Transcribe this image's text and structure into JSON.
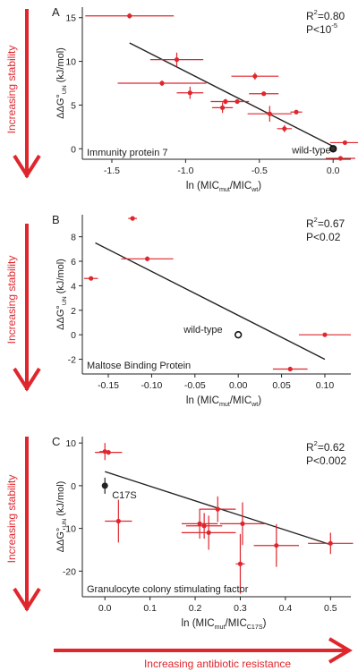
{
  "figure": {
    "stability_arrow_label": "Increasing stability",
    "resistance_arrow_label": "Increasing antibiotic resistance",
    "accent_color": "#e0262d"
  },
  "chart_data": [
    {
      "type": "scatter",
      "panel_letter": "A",
      "title": "Immunity protein 7",
      "xlabel": "ln (MIC_mut/MIC_wt)",
      "ylabel": "ΔΔG°_UN (kJ/mol)",
      "xlim": [
        -1.7,
        0.12
      ],
      "ylim": [
        -1.2,
        16.2
      ],
      "xticks": [
        -1.5,
        -1.0,
        -0.5,
        0.0
      ],
      "xtick_labels": [
        "-1.5",
        "-1.0",
        "-0.5",
        "0.0"
      ],
      "yticks": [
        0,
        5,
        10,
        15
      ],
      "ytick_labels": [
        "0",
        "5",
        "10",
        "15"
      ],
      "stats": {
        "r2_label": "R",
        "r2_value": "=0.80",
        "p_label": "P<10",
        "p_exponent": "-5"
      },
      "reference_point": {
        "label": "wild-type",
        "x": 0.0,
        "y": 0.0
      },
      "fit_line": {
        "x": [
          -1.38,
          0.02
        ],
        "y": [
          12.1,
          0.1
        ]
      },
      "points": [
        {
          "x": -1.38,
          "y": 15.2,
          "xerr": 0.3,
          "yerr": 0.3
        },
        {
          "x": -1.06,
          "y": 10.2,
          "xerr": 0.18,
          "yerr": 0.8
        },
        {
          "x": -1.16,
          "y": 7.5,
          "xerr": 0.3,
          "yerr": 0.3
        },
        {
          "x": -0.97,
          "y": 6.4,
          "xerr": 0.09,
          "yerr": 0.7
        },
        {
          "x": -0.75,
          "y": 4.7,
          "xerr": 0.07,
          "yerr": 0.6
        },
        {
          "x": -0.73,
          "y": 5.4,
          "xerr": 0.1,
          "yerr": 0.3
        },
        {
          "x": -0.65,
          "y": 5.4,
          "xerr": 0.08,
          "yerr": 0.2
        },
        {
          "x": -0.53,
          "y": 8.3,
          "xerr": 0.16,
          "yerr": 0.4
        },
        {
          "x": -0.47,
          "y": 6.3,
          "xerr": 0.1,
          "yerr": 0.2
        },
        {
          "x": -0.43,
          "y": 4.0,
          "xerr": 0.15,
          "yerr": 0.9
        },
        {
          "x": -0.33,
          "y": 2.3,
          "xerr": 0.05,
          "yerr": 0.4
        },
        {
          "x": -0.25,
          "y": 4.2,
          "xerr": 0.04,
          "yerr": 0.2
        },
        {
          "x": 0.08,
          "y": 0.7,
          "xerr": 0.1,
          "yerr": 0.2
        },
        {
          "x": 0.05,
          "y": -1.1,
          "xerr": 0.1,
          "yerr": 0.2
        }
      ]
    },
    {
      "type": "scatter",
      "panel_letter": "B",
      "title": "Maltose Binding Protein",
      "xlabel": "ln (MIC_mut/MIC_wt)",
      "ylabel": "ΔΔG°_UN (kJ/mol)",
      "xlim": [
        -0.18,
        0.13
      ],
      "ylim": [
        -3.2,
        9.8
      ],
      "xticks": [
        -0.15,
        -0.1,
        -0.05,
        0.0,
        0.05,
        0.1
      ],
      "xtick_labels": [
        "-0.15",
        "-0.10",
        "-0.05",
        "0.00",
        "0.05",
        "0.10"
      ],
      "yticks": [
        -2,
        0,
        2,
        4,
        6,
        8
      ],
      "ytick_labels": [
        "-2",
        "0",
        "2",
        "4",
        "6",
        "8"
      ],
      "stats": {
        "r2_label": "R",
        "r2_value": "=0.67",
        "p_label": "P<0.02",
        "p_exponent": ""
      },
      "reference_point": {
        "label": "wild-type",
        "x": 0.0,
        "y": 0.0
      },
      "fit_line": {
        "x": [
          -0.165,
          0.1
        ],
        "y": [
          7.5,
          -2.0
        ]
      },
      "points": [
        {
          "x": -0.17,
          "y": 4.6,
          "xerr": 0.008,
          "yerr": 0.0
        },
        {
          "x": -0.122,
          "y": 9.5,
          "xerr": 0.005,
          "yerr": 0.0
        },
        {
          "x": -0.105,
          "y": 6.2,
          "xerr": 0.03,
          "yerr": 0.2
        },
        {
          "x": 0.06,
          "y": -2.8,
          "xerr": 0.02,
          "yerr": 0.0
        },
        {
          "x": 0.1,
          "y": 0.0,
          "xerr": 0.03,
          "yerr": 0.0
        }
      ]
    },
    {
      "type": "scatter",
      "panel_letter": "C",
      "title": "Granulocyte colony stimulating factor",
      "xlabel": "ln (MIC_mut/MIC_C17S)",
      "ylabel": "ΔΔG°_UN (kJ/mol)",
      "xlim": [
        -0.05,
        0.545
      ],
      "ylim": [
        -26,
        11.5
      ],
      "xticks": [
        0.0,
        0.1,
        0.2,
        0.3,
        0.4,
        0.5
      ],
      "xtick_labels": [
        "0.0",
        "0.1",
        "0.2",
        "0.3",
        "0.4",
        "0.5"
      ],
      "yticks": [
        -20,
        -10,
        0,
        10
      ],
      "ytick_labels": [
        "-20",
        "-10",
        "0",
        "10"
      ],
      "stats": {
        "r2_label": "R",
        "r2_value": "=0.62",
        "p_label": "P<0.002",
        "p_exponent": ""
      },
      "reference_point": {
        "label": "C17S",
        "x": 0.0,
        "y": 0.0
      },
      "fit_line": {
        "x": [
          0.0,
          0.5
        ],
        "y": [
          3.3,
          -13.8
        ]
      },
      "points": [
        {
          "x": 0.0,
          "y": 8.0,
          "xerr": 0.012,
          "yerr": 2.0
        },
        {
          "x": 0.008,
          "y": 7.8,
          "xerr": 0.03,
          "yerr": 0.5
        },
        {
          "x": 0.03,
          "y": -8.3,
          "xerr": 0.03,
          "yerr": 5.0
        },
        {
          "x": 0.21,
          "y": -8.9,
          "xerr": 0.04,
          "yerr": 3.5
        },
        {
          "x": 0.22,
          "y": -9.4,
          "xerr": 0.04,
          "yerr": 3.0
        },
        {
          "x": 0.23,
          "y": -11.0,
          "xerr": 0.06,
          "yerr": 4.0
        },
        {
          "x": 0.25,
          "y": -5.5,
          "xerr": 0.04,
          "yerr": 3.0
        },
        {
          "x": 0.3,
          "y": -18.3,
          "xerr": 0.01,
          "yerr": 7.0
        },
        {
          "x": 0.305,
          "y": -8.9,
          "xerr": 0.05,
          "yerr": 5.0
        },
        {
          "x": 0.38,
          "y": -14.0,
          "xerr": 0.05,
          "yerr": 5.0
        },
        {
          "x": 0.5,
          "y": -13.5,
          "xerr": 0.05,
          "yerr": 2.5
        }
      ]
    }
  ]
}
